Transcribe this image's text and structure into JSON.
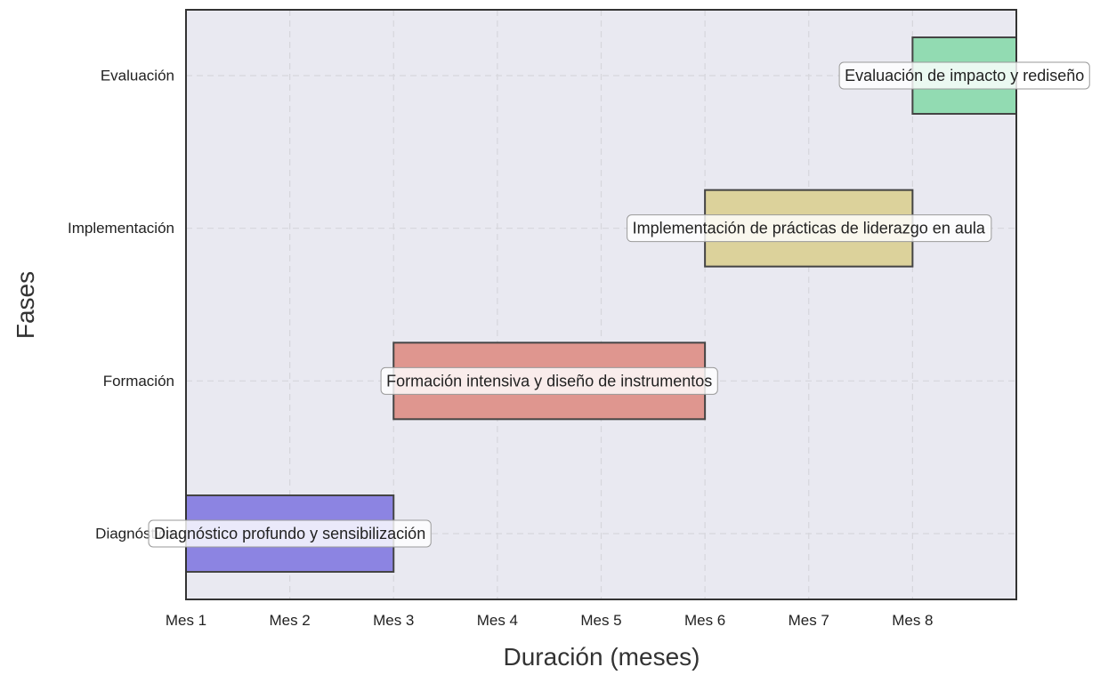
{
  "chart_data": {
    "type": "gantt",
    "xlabel": "Duración (meses)",
    "ylabel": "Fases",
    "x_ticks": [
      "Mes 1",
      "Mes 2",
      "Mes 3",
      "Mes 4",
      "Mes 5",
      "Mes 6",
      "Mes 7",
      "Mes 8"
    ],
    "xlim": [
      1,
      9
    ],
    "categories": [
      "Diagnóstico",
      "Formación",
      "Implementación",
      "Evaluación"
    ],
    "tasks": [
      {
        "phase": "Diagnóstico",
        "label": "Diagnóstico profundo y sensibilización",
        "start": 1,
        "end": 3,
        "color": "#8c84e2"
      },
      {
        "phase": "Formación",
        "label": "Formación intensiva y diseño de instrumentos",
        "start": 3,
        "end": 6,
        "color": "#df968f"
      },
      {
        "phase": "Implementación",
        "label": "Implementación de prácticas de liderazgo en aula",
        "start": 6,
        "end": 8,
        "color": "#dcd29b"
      },
      {
        "phase": "Evaluación",
        "label": "Evaluación de impacto y rediseño",
        "start": 8,
        "end": 9,
        "color": "#92dbb2"
      }
    ],
    "grid": true,
    "plot_background": "#e9e9f1"
  }
}
